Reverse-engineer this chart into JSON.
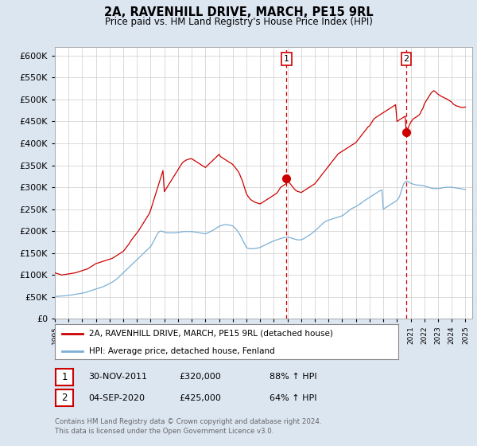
{
  "title": "2A, RAVENHILL DRIVE, MARCH, PE15 9RL",
  "subtitle": "Price paid vs. HM Land Registry's House Price Index (HPI)",
  "xlim_start": 1995.0,
  "xlim_end": 2025.5,
  "ylim": [
    0,
    620000
  ],
  "yticks": [
    0,
    50000,
    100000,
    150000,
    200000,
    250000,
    300000,
    350000,
    400000,
    450000,
    500000,
    550000,
    600000
  ],
  "background_color": "#dce6f1",
  "plot_bg_color": "#ffffff",
  "grid_color": "#cccccc",
  "red_line_color": "#cc0000",
  "blue_line_color": "#7bafd4",
  "marker1_year": 2011.92,
  "marker1_value": 320000,
  "marker2_year": 2020.67,
  "marker2_value": 425000,
  "legend_red_label": "2A, RAVENHILL DRIVE, MARCH, PE15 9RL (detached house)",
  "legend_blue_label": "HPI: Average price, detached house, Fenland",
  "annotation1_date": "30-NOV-2011",
  "annotation1_price": "£320,000",
  "annotation1_hpi": "88% ↑ HPI",
  "annotation2_date": "04-SEP-2020",
  "annotation2_price": "£425,000",
  "annotation2_hpi": "64% ↑ HPI",
  "footer": "Contains HM Land Registry data © Crown copyright and database right 2024.\nThis data is licensed under the Open Government Licence v3.0.",
  "red_x": [
    1995.0,
    1995.1,
    1995.2,
    1995.3,
    1995.4,
    1995.5,
    1995.6,
    1995.7,
    1995.8,
    1995.9,
    1996.0,
    1996.1,
    1996.2,
    1996.3,
    1996.4,
    1996.5,
    1996.6,
    1996.7,
    1996.8,
    1996.9,
    1997.0,
    1997.1,
    1997.2,
    1997.3,
    1997.4,
    1997.5,
    1997.6,
    1997.7,
    1997.8,
    1997.9,
    1998.0,
    1998.1,
    1998.2,
    1998.3,
    1998.4,
    1998.5,
    1998.6,
    1998.7,
    1998.8,
    1998.9,
    1999.0,
    1999.1,
    1999.2,
    1999.3,
    1999.4,
    1999.5,
    1999.6,
    1999.7,
    1999.8,
    1999.9,
    2000.0,
    2000.1,
    2000.2,
    2000.3,
    2000.4,
    2000.5,
    2000.6,
    2000.7,
    2000.8,
    2000.9,
    2001.0,
    2001.1,
    2001.2,
    2001.3,
    2001.4,
    2001.5,
    2001.6,
    2001.7,
    2001.8,
    2001.9,
    2002.0,
    2002.1,
    2002.2,
    2002.3,
    2002.4,
    2002.5,
    2002.6,
    2002.7,
    2002.8,
    2002.9,
    2003.0,
    2003.1,
    2003.2,
    2003.3,
    2003.4,
    2003.5,
    2003.6,
    2003.7,
    2003.8,
    2003.9,
    2004.0,
    2004.1,
    2004.2,
    2004.3,
    2004.4,
    2004.5,
    2004.6,
    2004.7,
    2004.8,
    2004.9,
    2005.0,
    2005.1,
    2005.2,
    2005.3,
    2005.4,
    2005.5,
    2005.6,
    2005.7,
    2005.8,
    2005.9,
    2006.0,
    2006.1,
    2006.2,
    2006.3,
    2006.4,
    2006.5,
    2006.6,
    2006.7,
    2006.8,
    2006.9,
    2007.0,
    2007.1,
    2007.2,
    2007.3,
    2007.4,
    2007.5,
    2007.6,
    2007.7,
    2007.8,
    2007.9,
    2008.0,
    2008.1,
    2008.2,
    2008.3,
    2008.4,
    2008.5,
    2008.6,
    2008.7,
    2008.8,
    2008.9,
    2009.0,
    2009.1,
    2009.2,
    2009.3,
    2009.4,
    2009.5,
    2009.6,
    2009.7,
    2009.8,
    2009.9,
    2010.0,
    2010.1,
    2010.2,
    2010.3,
    2010.4,
    2010.5,
    2010.6,
    2010.7,
    2010.8,
    2010.9,
    2011.0,
    2011.1,
    2011.2,
    2011.3,
    2011.4,
    2011.5,
    2011.6,
    2011.7,
    2011.8,
    2011.9,
    2011.92,
    2012.0,
    2012.1,
    2012.2,
    2012.3,
    2012.4,
    2012.5,
    2012.6,
    2012.7,
    2012.8,
    2012.9,
    2013.0,
    2013.1,
    2013.2,
    2013.3,
    2013.4,
    2013.5,
    2013.6,
    2013.7,
    2013.8,
    2013.9,
    2014.0,
    2014.1,
    2014.2,
    2014.3,
    2014.4,
    2014.5,
    2014.6,
    2014.7,
    2014.8,
    2014.9,
    2015.0,
    2015.1,
    2015.2,
    2015.3,
    2015.4,
    2015.5,
    2015.6,
    2015.7,
    2015.8,
    2015.9,
    2016.0,
    2016.1,
    2016.2,
    2016.3,
    2016.4,
    2016.5,
    2016.6,
    2016.7,
    2016.8,
    2016.9,
    2017.0,
    2017.1,
    2017.2,
    2017.3,
    2017.4,
    2017.5,
    2017.6,
    2017.7,
    2017.8,
    2017.9,
    2018.0,
    2018.1,
    2018.2,
    2018.3,
    2018.4,
    2018.5,
    2018.6,
    2018.7,
    2018.8,
    2018.9,
    2019.0,
    2019.1,
    2019.2,
    2019.3,
    2019.4,
    2019.5,
    2019.6,
    2019.7,
    2019.8,
    2019.9,
    2020.0,
    2020.1,
    2020.2,
    2020.3,
    2020.4,
    2020.5,
    2020.6,
    2020.67,
    2021.0,
    2021.1,
    2021.2,
    2021.3,
    2021.4,
    2021.5,
    2021.6,
    2021.7,
    2021.8,
    2021.9,
    2022.0,
    2022.1,
    2022.2,
    2022.3,
    2022.4,
    2022.5,
    2022.6,
    2022.7,
    2022.8,
    2022.9,
    2023.0,
    2023.1,
    2023.2,
    2023.3,
    2023.4,
    2023.5,
    2023.6,
    2023.7,
    2023.8,
    2023.9,
    2024.0,
    2024.1,
    2024.2,
    2024.3,
    2024.4,
    2024.5,
    2024.6,
    2024.7,
    2024.8,
    2024.9,
    2025.0
  ],
  "red_y": [
    105000,
    104000,
    103000,
    102000,
    101000,
    100000,
    100500,
    101000,
    101500,
    102000,
    102500,
    103000,
    103500,
    104000,
    104500,
    105000,
    106000,
    107000,
    108000,
    109000,
    110000,
    111000,
    112000,
    113000,
    114000,
    116000,
    118000,
    120000,
    122000,
    124000,
    126000,
    127000,
    128000,
    129000,
    130000,
    131000,
    132000,
    133000,
    134000,
    135000,
    136000,
    137000,
    138000,
    140000,
    142000,
    144000,
    146000,
    148000,
    150000,
    152000,
    154000,
    158000,
    162000,
    166000,
    170000,
    175000,
    180000,
    184000,
    188000,
    192000,
    196000,
    200000,
    205000,
    210000,
    215000,
    220000,
    225000,
    230000,
    235000,
    240000,
    248000,
    258000,
    268000,
    278000,
    288000,
    298000,
    308000,
    318000,
    328000,
    338000,
    290000,
    295000,
    300000,
    305000,
    310000,
    315000,
    320000,
    325000,
    330000,
    335000,
    340000,
    345000,
    350000,
    355000,
    358000,
    360000,
    362000,
    363000,
    364000,
    365000,
    365000,
    363000,
    361000,
    359000,
    357000,
    355000,
    353000,
    351000,
    349000,
    347000,
    345000,
    348000,
    351000,
    354000,
    357000,
    360000,
    363000,
    366000,
    369000,
    372000,
    375000,
    370000,
    368000,
    366000,
    364000,
    362000,
    360000,
    358000,
    356000,
    354000,
    352000,
    348000,
    344000,
    340000,
    336000,
    330000,
    322000,
    315000,
    305000,
    295000,
    285000,
    280000,
    276000,
    272000,
    270000,
    268000,
    266000,
    265000,
    264000,
    263000,
    262000,
    264000,
    266000,
    268000,
    270000,
    272000,
    274000,
    276000,
    278000,
    280000,
    282000,
    284000,
    286000,
    290000,
    295000,
    300000,
    302000,
    304000,
    306000,
    308000,
    320000,
    315000,
    312000,
    308000,
    304000,
    300000,
    296000,
    293000,
    291000,
    290000,
    289000,
    288000,
    290000,
    292000,
    294000,
    296000,
    298000,
    300000,
    302000,
    304000,
    306000,
    308000,
    312000,
    316000,
    320000,
    324000,
    328000,
    332000,
    336000,
    340000,
    344000,
    348000,
    352000,
    356000,
    360000,
    364000,
    368000,
    372000,
    376000,
    378000,
    380000,
    382000,
    384000,
    386000,
    388000,
    390000,
    392000,
    394000,
    396000,
    398000,
    400000,
    402000,
    406000,
    410000,
    414000,
    418000,
    422000,
    426000,
    430000,
    434000,
    438000,
    440000,
    445000,
    450000,
    455000,
    458000,
    460000,
    462000,
    464000,
    466000,
    468000,
    470000,
    472000,
    474000,
    476000,
    478000,
    480000,
    482000,
    484000,
    486000,
    488000,
    450000,
    452000,
    454000,
    456000,
    458000,
    460000,
    462000,
    425000,
    448000,
    452000,
    456000,
    458000,
    460000,
    462000,
    464000,
    468000,
    475000,
    480000,
    490000,
    495000,
    500000,
    505000,
    510000,
    515000,
    518000,
    520000,
    518000,
    515000,
    512000,
    510000,
    508000,
    506000,
    505000,
    503000,
    502000,
    500000,
    498000,
    496000,
    494000,
    490000,
    488000,
    486000,
    485000,
    484000,
    483000,
    482000,
    482000,
    482000,
    483000
  ],
  "blue_x": [
    1995.0,
    1995.1,
    1995.2,
    1995.3,
    1995.4,
    1995.5,
    1995.6,
    1995.7,
    1995.8,
    1995.9,
    1996.0,
    1996.1,
    1996.2,
    1996.3,
    1996.4,
    1996.5,
    1996.6,
    1996.7,
    1996.8,
    1996.9,
    1997.0,
    1997.1,
    1997.2,
    1997.3,
    1997.4,
    1997.5,
    1997.6,
    1997.7,
    1997.8,
    1997.9,
    1998.0,
    1998.1,
    1998.2,
    1998.3,
    1998.4,
    1998.5,
    1998.6,
    1998.7,
    1998.8,
    1998.9,
    1999.0,
    1999.1,
    1999.2,
    1999.3,
    1999.4,
    1999.5,
    1999.6,
    1999.7,
    1999.8,
    1999.9,
    2000.0,
    2000.1,
    2000.2,
    2000.3,
    2000.4,
    2000.5,
    2000.6,
    2000.7,
    2000.8,
    2000.9,
    2001.0,
    2001.1,
    2001.2,
    2001.3,
    2001.4,
    2001.5,
    2001.6,
    2001.7,
    2001.8,
    2001.9,
    2002.0,
    2002.1,
    2002.2,
    2002.3,
    2002.4,
    2002.5,
    2002.6,
    2002.7,
    2002.8,
    2002.9,
    2003.0,
    2003.1,
    2003.2,
    2003.3,
    2003.4,
    2003.5,
    2003.6,
    2003.7,
    2003.8,
    2003.9,
    2004.0,
    2004.1,
    2004.2,
    2004.3,
    2004.4,
    2004.5,
    2004.6,
    2004.7,
    2004.8,
    2004.9,
    2005.0,
    2005.1,
    2005.2,
    2005.3,
    2005.4,
    2005.5,
    2005.6,
    2005.7,
    2005.8,
    2005.9,
    2006.0,
    2006.1,
    2006.2,
    2006.3,
    2006.4,
    2006.5,
    2006.6,
    2006.7,
    2006.8,
    2006.9,
    2007.0,
    2007.1,
    2007.2,
    2007.3,
    2007.4,
    2007.5,
    2007.6,
    2007.7,
    2007.8,
    2007.9,
    2008.0,
    2008.1,
    2008.2,
    2008.3,
    2008.4,
    2008.5,
    2008.6,
    2008.7,
    2008.8,
    2008.9,
    2009.0,
    2009.1,
    2009.2,
    2009.3,
    2009.4,
    2009.5,
    2009.6,
    2009.7,
    2009.8,
    2009.9,
    2010.0,
    2010.1,
    2010.2,
    2010.3,
    2010.4,
    2010.5,
    2010.6,
    2010.7,
    2010.8,
    2010.9,
    2011.0,
    2011.1,
    2011.2,
    2011.3,
    2011.4,
    2011.5,
    2011.6,
    2011.7,
    2011.8,
    2011.9,
    2012.0,
    2012.1,
    2012.2,
    2012.3,
    2012.4,
    2012.5,
    2012.6,
    2012.7,
    2012.8,
    2012.9,
    2013.0,
    2013.1,
    2013.2,
    2013.3,
    2013.4,
    2013.5,
    2013.6,
    2013.7,
    2013.8,
    2013.9,
    2014.0,
    2014.1,
    2014.2,
    2014.3,
    2014.4,
    2014.5,
    2014.6,
    2014.7,
    2014.8,
    2014.9,
    2015.0,
    2015.1,
    2015.2,
    2015.3,
    2015.4,
    2015.5,
    2015.6,
    2015.7,
    2015.8,
    2015.9,
    2016.0,
    2016.1,
    2016.2,
    2016.3,
    2016.4,
    2016.5,
    2016.6,
    2016.7,
    2016.8,
    2016.9,
    2017.0,
    2017.1,
    2017.2,
    2017.3,
    2017.4,
    2017.5,
    2017.6,
    2017.7,
    2017.8,
    2017.9,
    2018.0,
    2018.1,
    2018.2,
    2018.3,
    2018.4,
    2018.5,
    2018.6,
    2018.7,
    2018.8,
    2018.9,
    2019.0,
    2019.1,
    2019.2,
    2019.3,
    2019.4,
    2019.5,
    2019.6,
    2019.7,
    2019.8,
    2019.9,
    2020.0,
    2020.1,
    2020.2,
    2020.3,
    2020.4,
    2020.5,
    2020.6,
    2020.7,
    2020.8,
    2020.9,
    2021.0,
    2021.1,
    2021.2,
    2021.3,
    2021.4,
    2021.5,
    2021.6,
    2021.7,
    2021.8,
    2021.9,
    2022.0,
    2022.1,
    2022.2,
    2022.3,
    2022.4,
    2022.5,
    2022.6,
    2022.7,
    2022.8,
    2022.9,
    2023.0,
    2023.1,
    2023.2,
    2023.3,
    2023.4,
    2023.5,
    2023.6,
    2023.7,
    2023.8,
    2023.9,
    2024.0,
    2024.1,
    2024.2,
    2024.3,
    2024.4,
    2024.5,
    2024.6,
    2024.7,
    2024.8,
    2024.9,
    2025.0
  ],
  "blue_y": [
    51000,
    51200,
    51400,
    51600,
    51800,
    52000,
    52300,
    52600,
    52900,
    53200,
    53500,
    54000,
    54500,
    55000,
    55500,
    56000,
    56500,
    57000,
    57500,
    58000,
    58500,
    59200,
    60000,
    61000,
    62000,
    63000,
    64000,
    65000,
    66000,
    67000,
    68000,
    69000,
    70000,
    71000,
    72000,
    73000,
    74500,
    76000,
    77500,
    79000,
    80500,
    82000,
    84000,
    86000,
    88000,
    90500,
    93000,
    96000,
    99000,
    102000,
    105000,
    108000,
    111000,
    114000,
    117000,
    120000,
    123000,
    126000,
    129000,
    132000,
    135000,
    138000,
    141000,
    144000,
    147000,
    150000,
    153000,
    156000,
    159000,
    162000,
    165000,
    170000,
    176000,
    182000,
    188000,
    194000,
    198000,
    200000,
    200000,
    199000,
    198000,
    197000,
    196000,
    196000,
    196000,
    196000,
    196000,
    196000,
    196000,
    196500,
    197000,
    197500,
    198000,
    198500,
    199000,
    199000,
    199000,
    199000,
    199000,
    199000,
    199000,
    198500,
    198000,
    197500,
    197000,
    196500,
    196000,
    195500,
    195000,
    194500,
    194000,
    195000,
    196500,
    198000,
    199500,
    201000,
    203000,
    205000,
    207000,
    209000,
    211000,
    212000,
    213000,
    214000,
    214500,
    215000,
    214500,
    214000,
    213500,
    213000,
    212000,
    209000,
    206000,
    202000,
    198000,
    193000,
    187000,
    181000,
    175000,
    169000,
    163000,
    161000,
    160000,
    160000,
    160000,
    160000,
    160500,
    161000,
    161500,
    162000,
    163000,
    164500,
    166000,
    167500,
    169000,
    170500,
    172000,
    173500,
    175000,
    176500,
    178000,
    179000,
    180000,
    181000,
    182000,
    183000,
    184000,
    185000,
    185500,
    186000,
    186000,
    185500,
    185000,
    184000,
    183000,
    182000,
    181000,
    180500,
    180000,
    180000,
    180500,
    181500,
    183000,
    185000,
    187000,
    189000,
    191000,
    193000,
    195500,
    198000,
    200500,
    203000,
    206000,
    209000,
    212000,
    215000,
    218000,
    220500,
    222500,
    224000,
    225000,
    226000,
    227000,
    228000,
    229000,
    230000,
    231000,
    232000,
    233000,
    234000,
    235000,
    237000,
    239500,
    242000,
    244500,
    247000,
    249500,
    251500,
    253000,
    254500,
    256000,
    258000,
    260000,
    262000,
    264000,
    266500,
    269000,
    271000,
    273000,
    275000,
    277000,
    279000,
    281000,
    283000,
    285000,
    287000,
    289000,
    291000,
    292500,
    294000,
    250000,
    252000,
    254000,
    256000,
    258000,
    260000,
    262000,
    264000,
    266000,
    268000,
    270000,
    274000,
    280000,
    290000,
    300000,
    308000,
    312000,
    314000,
    313000,
    311000,
    309000,
    308000,
    307000,
    306000,
    305000,
    305000,
    305000,
    304500,
    304000,
    303500,
    303000,
    302000,
    301000,
    300000,
    299000,
    298000,
    297500,
    297000,
    297000,
    297000,
    297000,
    297500,
    298000,
    298500,
    299000,
    299500,
    300000,
    300000,
    300000,
    300000,
    300000,
    299500,
    299000,
    298500,
    298000,
    297500,
    297000,
    296500,
    296000,
    295500,
    295000
  ]
}
